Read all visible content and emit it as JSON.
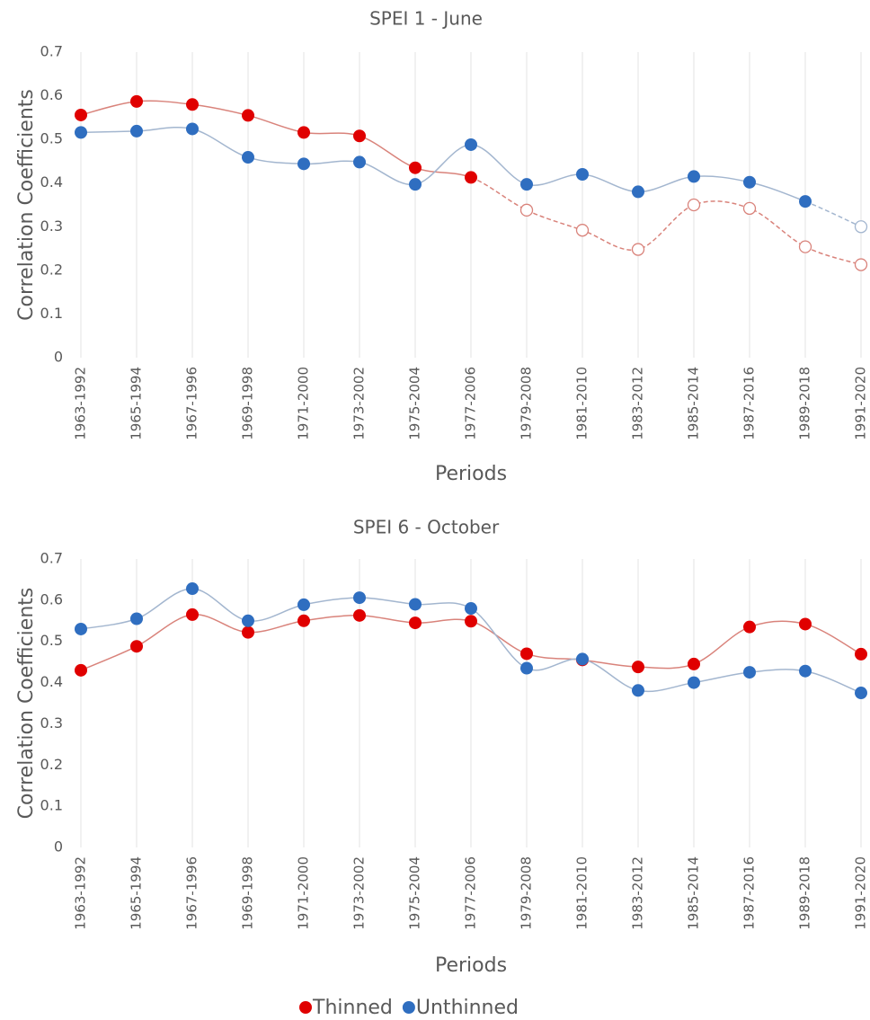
{
  "chart_data": [
    {
      "type": "line",
      "title": "SPEI 1 - June",
      "x_label": "Periods",
      "y_label": "Correlation Coefficients",
      "categories": [
        "1963-1992",
        "1965-1994",
        "1967-1996",
        "1969-1998",
        "1971-2000",
        "1973-2002",
        "1975-2004",
        "1977-2006",
        "1979-2008",
        "1981-2010",
        "1983-2012",
        "1985-2014",
        "1987-2016",
        "1989-2018",
        "1991-2020"
      ],
      "series": [
        {
          "color": "#e00000",
          "line_color": "#d9837b",
          "values": [
            0.556,
            0.587,
            0.58,
            0.555,
            0.516,
            0.508,
            0.435,
            0.413,
            0.338,
            0.292,
            0.248,
            0.35,
            0.342,
            0.254,
            0.213
          ],
          "filled": [
            true,
            true,
            true,
            true,
            true,
            true,
            true,
            true,
            false,
            false,
            false,
            false,
            false,
            false,
            false
          ]
        },
        {
          "color": "#2f6ec0",
          "line_color": "#a3b6cf",
          "values": [
            0.516,
            0.519,
            0.524,
            0.459,
            0.444,
            0.448,
            0.397,
            0.488,
            0.397,
            0.42,
            0.38,
            0.415,
            0.402,
            0.358,
            0.3
          ],
          "filled": [
            true,
            true,
            true,
            true,
            true,
            true,
            true,
            true,
            true,
            true,
            true,
            true,
            true,
            true,
            false
          ]
        }
      ],
      "ylim": [
        0,
        0.7
      ],
      "yticks": [
        0,
        0.1,
        0.2,
        0.3,
        0.4,
        0.5,
        0.6,
        0.7
      ],
      "grid": "x",
      "smooth": true
    },
    {
      "type": "line",
      "title": "SPEI 6 - October",
      "x_label": "Periods",
      "y_label": "Correlation Coefficients",
      "categories": [
        "1963-1992",
        "1965-1994",
        "1967-1996",
        "1969-1998",
        "1971-2000",
        "1973-2002",
        "1975-2004",
        "1977-2006",
        "1979-2008",
        "1981-2010",
        "1983-2012",
        "1985-2014",
        "1987-2016",
        "1989-2018",
        "1991-2020"
      ],
      "series": [
        {
          "name": "Thinned",
          "color": "#e00000",
          "line_color": "#d9837b",
          "values": [
            0.43,
            0.488,
            0.565,
            0.522,
            0.55,
            0.563,
            0.545,
            0.549,
            0.47,
            0.455,
            0.438,
            0.445,
            0.535,
            0.542,
            0.469
          ],
          "filled": [
            true,
            true,
            true,
            true,
            true,
            true,
            true,
            true,
            true,
            true,
            true,
            true,
            true,
            true,
            true
          ]
        },
        {
          "name": "Unthinned",
          "color": "#2f6ec0",
          "line_color": "#a3b6cf",
          "values": [
            0.53,
            0.555,
            0.628,
            0.55,
            0.589,
            0.606,
            0.59,
            0.58,
            0.435,
            0.457,
            0.381,
            0.4,
            0.425,
            0.428,
            0.375
          ],
          "filled": [
            true,
            true,
            true,
            true,
            true,
            true,
            true,
            true,
            true,
            true,
            true,
            true,
            true,
            true,
            true
          ]
        }
      ],
      "ylim": [
        0,
        0.7
      ],
      "yticks": [
        0,
        0.1,
        0.2,
        0.3,
        0.4,
        0.5,
        0.6,
        0.7
      ],
      "grid": "x",
      "smooth": true,
      "legend": "bottom"
    }
  ]
}
